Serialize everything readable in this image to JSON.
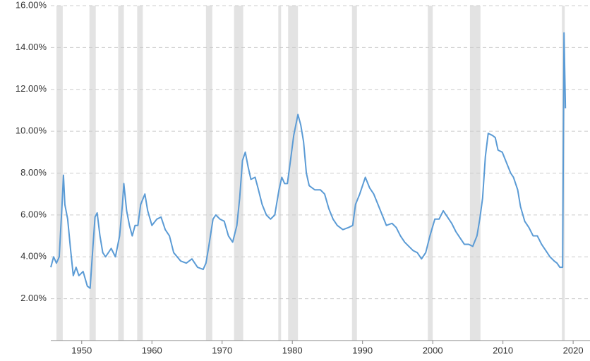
{
  "chart_data": {
    "type": "line",
    "x": [
      1945.6,
      1946.0,
      1946.4,
      1946.8,
      1947.2,
      1947.4,
      1947.6,
      1948.0,
      1948.4,
      1948.8,
      1949.2,
      1949.6,
      1950.2,
      1950.8,
      1951.2,
      1951.6,
      1951.9,
      1952.2,
      1952.6,
      1953.0,
      1953.4,
      1954.2,
      1954.8,
      1955.4,
      1955.8,
      1956.0,
      1956.4,
      1956.8,
      1957.2,
      1957.6,
      1958.0,
      1958.4,
      1959.0,
      1959.4,
      1960.0,
      1960.7,
      1961.3,
      1961.9,
      1962.5,
      1963.1,
      1964.1,
      1964.9,
      1965.7,
      1966.5,
      1967.3,
      1967.7,
      1968.1,
      1968.7,
      1969.1,
      1969.7,
      1970.3,
      1970.9,
      1971.5,
      1972.1,
      1972.5,
      1972.9,
      1973.3,
      1973.7,
      1974.1,
      1974.7,
      1975.1,
      1975.7,
      1976.3,
      1976.9,
      1977.5,
      1978.1,
      1978.5,
      1978.9,
      1979.3,
      1979.7,
      1980.2,
      1980.8,
      1981.2,
      1981.6,
      1982.0,
      1982.4,
      1983.2,
      1984.0,
      1984.6,
      1985.2,
      1985.8,
      1986.4,
      1987.2,
      1988.0,
      1988.6,
      1989.0,
      1989.6,
      1990.4,
      1991.0,
      1991.6,
      1992.2,
      1992.8,
      1993.4,
      1994.2,
      1994.8,
      1995.4,
      1996.0,
      1996.6,
      1997.2,
      1997.8,
      1998.4,
      1999.0,
      1999.6,
      2000.3,
      2000.9,
      2001.5,
      2002.1,
      2002.7,
      2003.3,
      2003.9,
      2004.5,
      2005.1,
      2005.7,
      2006.3,
      2006.7,
      2007.1,
      2007.5,
      2007.9,
      2008.5,
      2008.9,
      2009.3,
      2009.9,
      2010.5,
      2011.1,
      2011.5,
      2012.1,
      2012.5,
      2013.1,
      2013.7,
      2014.3,
      2014.9,
      2015.5,
      2016.1,
      2016.7,
      2017.3,
      2017.7,
      2018.1,
      2018.5,
      2018.7,
      2018.9
    ],
    "series": [
      {
        "color": "#5b9bd5",
        "values": [
          3.5,
          4.0,
          3.7,
          4.0,
          6.5,
          7.9,
          6.5,
          5.8,
          4.4,
          3.1,
          3.5,
          3.1,
          3.3,
          2.6,
          2.5,
          4.5,
          5.9,
          6.1,
          5.0,
          4.2,
          4.0,
          4.4,
          4.0,
          5.0,
          6.5,
          7.5,
          6.2,
          5.5,
          5.0,
          5.5,
          5.5,
          6.5,
          7.0,
          6.2,
          5.5,
          5.8,
          5.9,
          5.3,
          5.0,
          4.2,
          3.8,
          3.7,
          3.9,
          3.5,
          3.4,
          3.7,
          4.5,
          5.8,
          6.0,
          5.8,
          5.7,
          5.0,
          4.7,
          5.5,
          6.8,
          8.6,
          9.0,
          8.3,
          7.7,
          7.8,
          7.3,
          6.5,
          6.0,
          5.8,
          6.0,
          7.2,
          7.8,
          7.5,
          7.5,
          8.5,
          9.8,
          10.8,
          10.3,
          9.5,
          8.0,
          7.4,
          7.2,
          7.2,
          7.0,
          6.3,
          5.8,
          5.5,
          5.3,
          5.4,
          5.5,
          6.5,
          7.0,
          7.8,
          7.3,
          7.0,
          6.5,
          6.0,
          5.5,
          5.6,
          5.4,
          5.0,
          4.7,
          4.5,
          4.3,
          4.2,
          3.9,
          4.2,
          5.0,
          5.8,
          5.8,
          6.2,
          5.9,
          5.6,
          5.2,
          4.9,
          4.6,
          4.6,
          4.5,
          5.0,
          5.8,
          6.8,
          8.8,
          9.9,
          9.8,
          9.7,
          9.1,
          9.0,
          8.5,
          8.0,
          7.8,
          7.2,
          6.4,
          5.7,
          5.4,
          5.0,
          5.0,
          4.6,
          4.3,
          4.0,
          3.8,
          3.7,
          3.5,
          3.5,
          14.7,
          11.1
        ]
      }
    ],
    "recessions": [
      [
        1946.4,
        1947.3
      ],
      [
        1951.1,
        1952.0
      ],
      [
        1955.2,
        1956.0
      ],
      [
        1957.9,
        1958.7
      ],
      [
        1967.7,
        1968.6
      ],
      [
        1971.7,
        1973.0
      ],
      [
        1978.0,
        1978.4
      ],
      [
        1979.4,
        1980.8
      ],
      [
        1988.5,
        1989.2
      ],
      [
        1999.3,
        2000.0
      ],
      [
        2005.3,
        2006.8
      ],
      [
        2018.4,
        2018.8
      ]
    ],
    "xlim": [
      1945.6,
      2022.4
    ],
    "xticks": [
      1950,
      1960,
      1970,
      1980,
      1990,
      2000,
      2010,
      2020
    ],
    "ylim": [
      0,
      16
    ],
    "yticks": [
      {
        "value": 2,
        "label": "2.00%"
      },
      {
        "value": 4,
        "label": "4.00%"
      },
      {
        "value": 6,
        "label": "6.00%"
      },
      {
        "value": 8,
        "label": "8.00%"
      },
      {
        "value": 10,
        "label": "10.00%"
      },
      {
        "value": 12,
        "label": "12.00%"
      },
      {
        "value": 14,
        "label": "14.00%"
      },
      {
        "value": 16,
        "label": "16.00%"
      }
    ],
    "grid": true
  }
}
